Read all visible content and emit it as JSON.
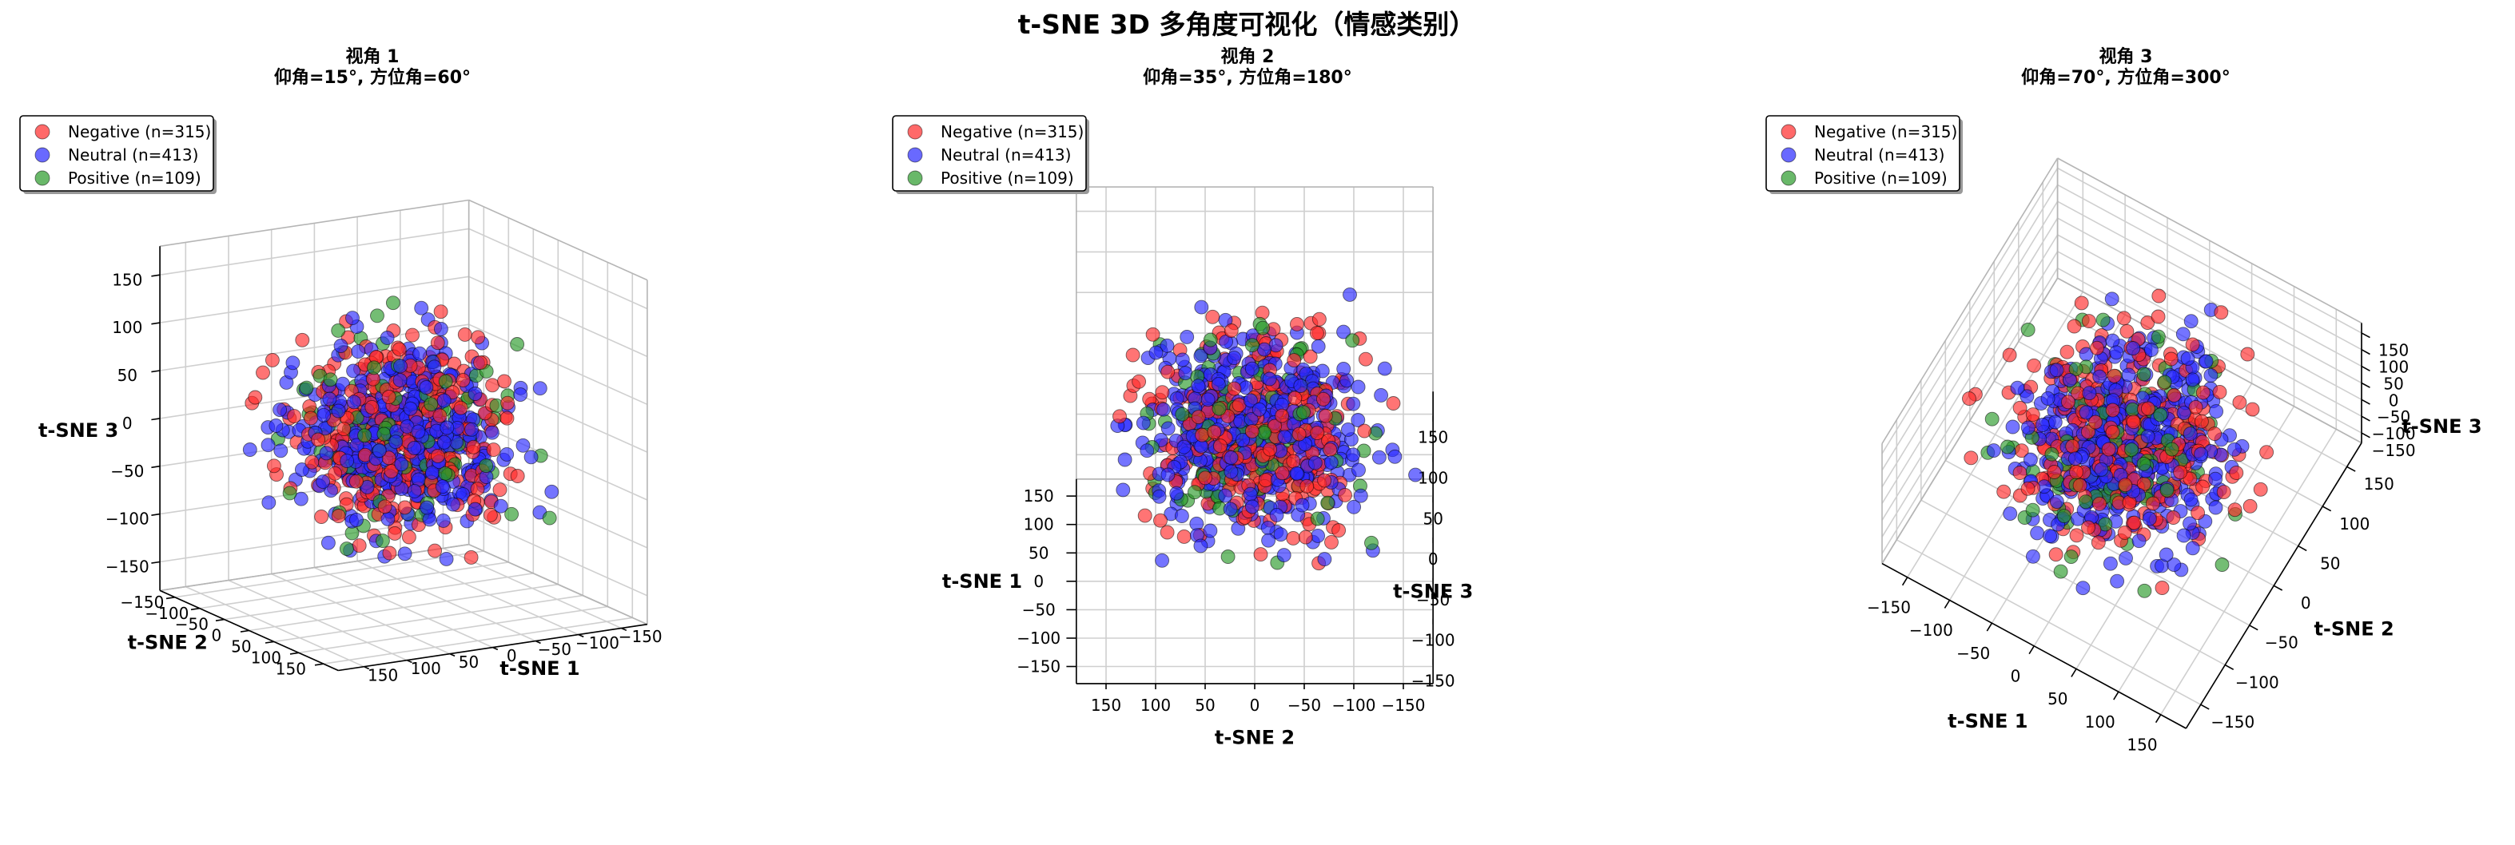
{
  "figure": {
    "suptitle": "t-SNE 3D 多角度可视化（情感类别）"
  },
  "colors": {
    "Negative": "#ff2a2a",
    "Neutral": "#2a2aff",
    "Positive": "#2a9a2a"
  },
  "chart_data": [
    {
      "type": "scatter",
      "title": "视角 1",
      "subtitle": "仰角=15°, 方位角=60°",
      "view": {
        "elev": 15,
        "azim": 60
      },
      "xlabel": "t-SNE 1",
      "ylabel": "t-SNE 2",
      "zlabel": "t-SNE 3",
      "xticks": [
        -150,
        -100,
        -50,
        0,
        50,
        100,
        150
      ],
      "yticks": [
        -150,
        -100,
        -50,
        0,
        50,
        100,
        150
      ],
      "zticks": [
        -150,
        -100,
        -50,
        0,
        50,
        100,
        150
      ],
      "xlim": [
        -180,
        180
      ],
      "ylim": [
        -180,
        180
      ],
      "zlim": [
        -180,
        180
      ],
      "grid": true,
      "legend_position": "top-left",
      "legend": [
        "Negative (n=315)",
        "Neutral (n=413)",
        "Positive (n=109)"
      ],
      "series": [
        {
          "name": "Negative (n=315)",
          "color": "Negative",
          "count": 315
        },
        {
          "name": "Neutral (n=413)",
          "color": "Neutral",
          "count": 413
        },
        {
          "name": "Positive (n=109)",
          "color": "Positive",
          "count": 109
        }
      ]
    },
    {
      "type": "scatter",
      "title": "视角 2",
      "subtitle": "仰角=35°, 方位角=180°",
      "view": {
        "elev": 35,
        "azim": 180
      },
      "xlabel": "t-SNE 1",
      "ylabel": "t-SNE 2",
      "zlabel": "t-SNE 3",
      "xticks": [
        -150,
        -100,
        -50,
        0,
        50,
        100,
        150
      ],
      "yticks": [
        -150,
        -100,
        -50,
        0,
        50,
        100,
        150
      ],
      "zticks": [
        -150,
        -100,
        -50,
        0,
        50,
        100,
        150
      ],
      "xlim": [
        -180,
        180
      ],
      "ylim": [
        -180,
        180
      ],
      "zlim": [
        -180,
        180
      ],
      "grid": true,
      "legend_position": "top-left",
      "legend": [
        "Negative (n=315)",
        "Neutral (n=413)",
        "Positive (n=109)"
      ],
      "series": [
        {
          "name": "Negative (n=315)",
          "color": "Negative",
          "count": 315
        },
        {
          "name": "Neutral (n=413)",
          "color": "Neutral",
          "count": 413
        },
        {
          "name": "Positive (n=109)",
          "color": "Positive",
          "count": 109
        }
      ]
    },
    {
      "type": "scatter",
      "title": "视角 3",
      "subtitle": "仰角=70°, 方位角=300°",
      "view": {
        "elev": 70,
        "azim": 300
      },
      "xlabel": "t-SNE 1",
      "ylabel": "t-SNE 2",
      "zlabel": "t-SNE 3",
      "xticks": [
        -150,
        -100,
        -50,
        0,
        50,
        100,
        150
      ],
      "yticks": [
        -150,
        -100,
        -50,
        0,
        50,
        100,
        150
      ],
      "zticks": [
        -150,
        -100,
        -50,
        0,
        50,
        100,
        150
      ],
      "xlim": [
        -180,
        180
      ],
      "ylim": [
        -180,
        180
      ],
      "zlim": [
        -180,
        180
      ],
      "grid": true,
      "legend_position": "top-left",
      "legend": [
        "Negative (n=315)",
        "Neutral (n=413)",
        "Positive (n=109)"
      ],
      "series": [
        {
          "name": "Negative (n=315)",
          "color": "Negative",
          "count": 315
        },
        {
          "name": "Neutral (n=413)",
          "color": "Neutral",
          "count": 413
        },
        {
          "name": "Positive (n=109)",
          "color": "Positive",
          "count": 109
        }
      ]
    }
  ]
}
